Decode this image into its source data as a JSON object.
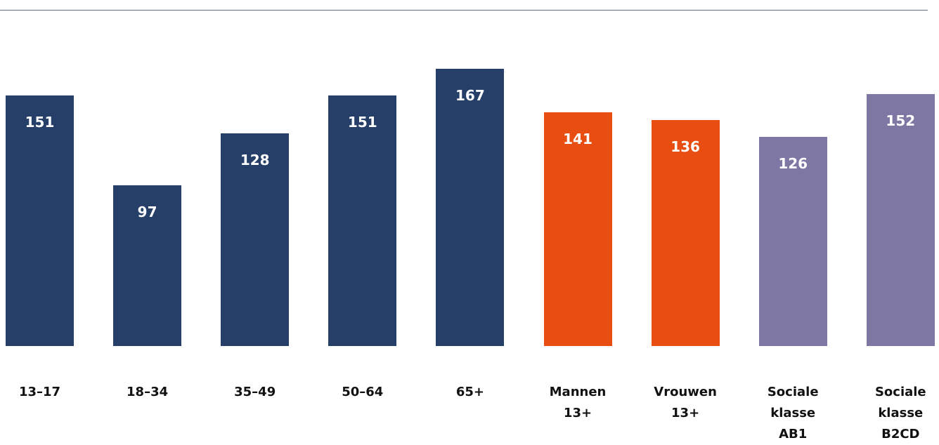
{
  "chart_data": {
    "type": "bar",
    "categories": [
      "13–17",
      "18–34",
      "35–49",
      "50–64",
      "65+",
      "Mannen 13+",
      "Vrouwen 13+",
      "Sociale klasse AB1",
      "Sociale klasse B2CD"
    ],
    "values": [
      151,
      97,
      128,
      151,
      167,
      141,
      136,
      126,
      152
    ],
    "colors": [
      "#253f69",
      "#253f69",
      "#253f69",
      "#253f69",
      "#253f69",
      "#e84e12",
      "#e84e12",
      "#7e76a3",
      "#7e76a3"
    ]
  }
}
